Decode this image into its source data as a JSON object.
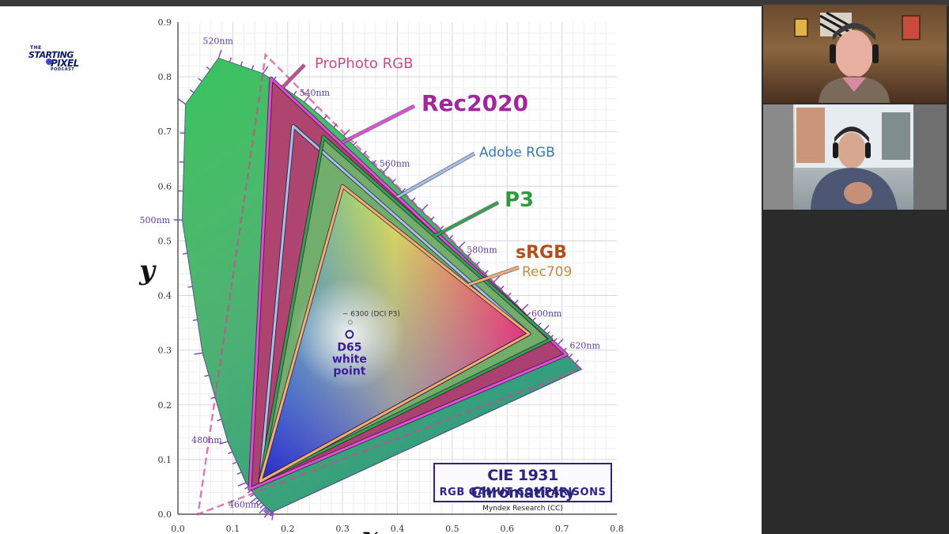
{
  "logo": {
    "line1": "THE",
    "line2": "STARTING",
    "line3": "PIXEL",
    "line4": "PODCAST"
  },
  "chart_data": {
    "type": "scatter",
    "title": "CIE 1931 Chromaticity",
    "subtitle": "RGB GAMUT COMPARISONS",
    "credit": "Myndex Research (CC)",
    "xlabel": "x",
    "ylabel": "y",
    "xlim": [
      0,
      0.8
    ],
    "ylim": [
      0,
      0.9
    ],
    "x_ticks": [
      "0.0",
      "0.1",
      "0.2",
      "0.3",
      "0.4",
      "0.5",
      "0.6",
      "0.7",
      "0.8"
    ],
    "y_ticks": [
      "0.0",
      "0.1",
      "0.2",
      "0.3",
      "0.4",
      "0.5",
      "0.6",
      "0.7",
      "0.8",
      "0.9"
    ],
    "grid": true,
    "spectral_locus": [
      [
        0.174,
        0.005
      ],
      [
        0.168,
        0.006
      ],
      [
        0.16,
        0.013
      ],
      [
        0.144,
        0.03
      ],
      [
        0.124,
        0.058
      ],
      [
        0.091,
        0.133
      ],
      [
        0.045,
        0.295
      ],
      [
        0.008,
        0.538
      ],
      [
        0.014,
        0.75
      ],
      [
        0.074,
        0.834
      ],
      [
        0.155,
        0.806
      ],
      [
        0.23,
        0.754
      ],
      [
        0.302,
        0.692
      ],
      [
        0.373,
        0.624
      ],
      [
        0.444,
        0.555
      ],
      [
        0.512,
        0.487
      ],
      [
        0.575,
        0.424
      ],
      [
        0.627,
        0.373
      ],
      [
        0.665,
        0.334
      ],
      [
        0.691,
        0.309
      ],
      [
        0.735,
        0.265
      ]
    ],
    "wavelength_labels": [
      {
        "nm": "460nm",
        "x": 0.144,
        "y": 0.03
      },
      {
        "nm": "480nm",
        "x": 0.091,
        "y": 0.133
      },
      {
        "nm": "500nm",
        "x": 0.008,
        "y": 0.538
      },
      {
        "nm": "520nm",
        "x": 0.074,
        "y": 0.834
      },
      {
        "nm": "540nm",
        "x": 0.23,
        "y": 0.754
      },
      {
        "nm": "560nm",
        "x": 0.373,
        "y": 0.624
      },
      {
        "nm": "580nm",
        "x": 0.512,
        "y": 0.487
      },
      {
        "nm": "600nm",
        "x": 0.627,
        "y": 0.373
      },
      {
        "nm": "620nm",
        "x": 0.691,
        "y": 0.309
      }
    ],
    "series": [
      {
        "name": "ProPhoto RGB",
        "color": "#c84d8a",
        "points": [
          [
            0.7347,
            0.2653
          ],
          [
            0.1596,
            0.8404
          ],
          [
            0.0366,
            0.0001
          ]
        ]
      },
      {
        "name": "Rec2020",
        "color": "#e04fd8",
        "points": [
          [
            0.708,
            0.292
          ],
          [
            0.17,
            0.797
          ],
          [
            0.131,
            0.046
          ]
        ]
      },
      {
        "name": "Adobe RGB",
        "color": "#9fc6e6",
        "points": [
          [
            0.64,
            0.33
          ],
          [
            0.21,
            0.71
          ],
          [
            0.15,
            0.06
          ]
        ]
      },
      {
        "name": "P3",
        "color": "#2fa44a",
        "points": [
          [
            0.68,
            0.32
          ],
          [
            0.265,
            0.69
          ],
          [
            0.15,
            0.06
          ]
        ]
      },
      {
        "name": "sRGB",
        "color": "#f0b070",
        "points": [
          [
            0.64,
            0.33
          ],
          [
            0.3,
            0.6
          ],
          [
            0.15,
            0.06
          ]
        ]
      }
    ],
    "label_sub": "Rec709",
    "points": [
      {
        "name": "D65",
        "label_lines": [
          "D65",
          "white",
          "point"
        ],
        "x": 0.3127,
        "y": 0.329
      },
      {
        "name": "~ 6300 (DCI P3)",
        "label": "~ 6300 (DCI P3)",
        "x": 0.314,
        "y": 0.351
      }
    ]
  },
  "colors": {
    "prophoto": "#c84d8a",
    "rec2020": "#a0289a",
    "adobe": "#3d7ab5",
    "p3": "#2f9a3e",
    "srgb": "#b0511c",
    "rec709": "#c48a44",
    "title_box": "#2d2380"
  }
}
